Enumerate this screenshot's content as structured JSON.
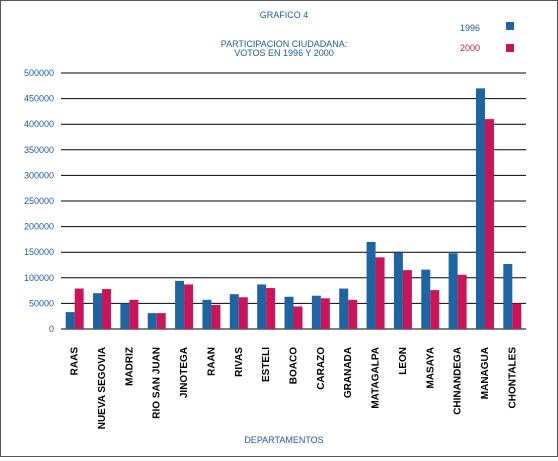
{
  "chart_data": {
    "type": "bar",
    "title": "GRAFICO 4",
    "subtitle_lines": [
      "PARTICIPACION CIUDADANA:",
      "VOTOS  EN 1996 Y 2000"
    ],
    "xlabel": "DEPARTAMENTOS",
    "ylabel": "",
    "ylim": [
      0,
      500000
    ],
    "yticks": [
      "500000",
      "450000",
      "400000",
      "350000",
      "300000",
      "250000",
      "200000",
      "150000",
      "100000",
      "50000",
      "0"
    ],
    "grid": true,
    "legend_position": "top-right",
    "categories": [
      "RAAS",
      "NUEVA SEGOVIA",
      "MADRIZ",
      "RIO SAN JUAN",
      "JINOTEGA",
      "RAAN",
      "RIVAS",
      "ESTELI",
      "BOACO",
      "CARAZO",
      "GRANADA",
      "MATAGALPA",
      "LEON",
      "MASAYA",
      "CHINANDEGA",
      "MANAGUA",
      "CHONTALES"
    ],
    "series": [
      {
        "name": "1996",
        "color": "#1f64a0",
        "values": [
          33000,
          70000,
          50000,
          31000,
          94000,
          57000,
          68000,
          87000,
          63000,
          65000,
          79000,
          170000,
          149000,
          116000,
          148000,
          470000,
          127000
        ]
      },
      {
        "name": "2000",
        "color": "#c8165b",
        "values": [
          79000,
          78000,
          57000,
          31000,
          87000,
          47000,
          62000,
          80000,
          44000,
          60000,
          57000,
          140000,
          115000,
          76000,
          106000,
          410000,
          50000
        ]
      }
    ]
  }
}
